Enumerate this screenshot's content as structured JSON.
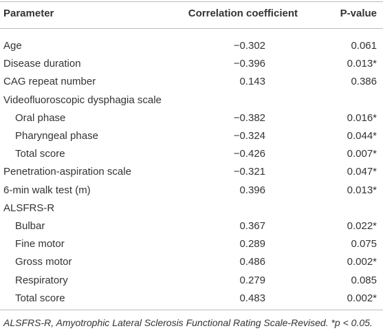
{
  "table": {
    "header": [
      "Parameter",
      "Correlation coefficient",
      "P-value"
    ],
    "rows": [
      [
        "Age",
        "−0.302",
        "0.061"
      ],
      [
        "Disease duration",
        "−0.396",
        "0.013*"
      ],
      [
        "CAG repeat number",
        "0.143",
        "0.386"
      ],
      [
        "Videofluoroscopic dysphagia scale",
        null,
        null
      ],
      [
        "Oral phase",
        "−0.382",
        "0.016*"
      ],
      [
        "Pharyngeal phase",
        "−0.324",
        "0.044*"
      ],
      [
        "Total score",
        "−0.426",
        "0.007*"
      ],
      [
        "Penetration-aspiration scale",
        "−0.321",
        "0.047*"
      ],
      [
        "6-min walk test (m)",
        "0.396",
        "0.013*"
      ],
      [
        "ALSFRS-R",
        null,
        null
      ],
      [
        "Bulbar",
        "0.367",
        "0.022*"
      ],
      [
        "Fine motor",
        "0.289",
        "0.075"
      ],
      [
        "Gross motor",
        "0.486",
        "0.002*"
      ],
      [
        "Respiratory",
        "0.279",
        "0.085"
      ],
      [
        "Total score",
        "0.483",
        "0.002*"
      ]
    ],
    "footnote": "ALSFRS-R, Amyotrophic Lateral Sclerosis Functional Rating Scale-Revised. *p < 0.05."
  }
}
